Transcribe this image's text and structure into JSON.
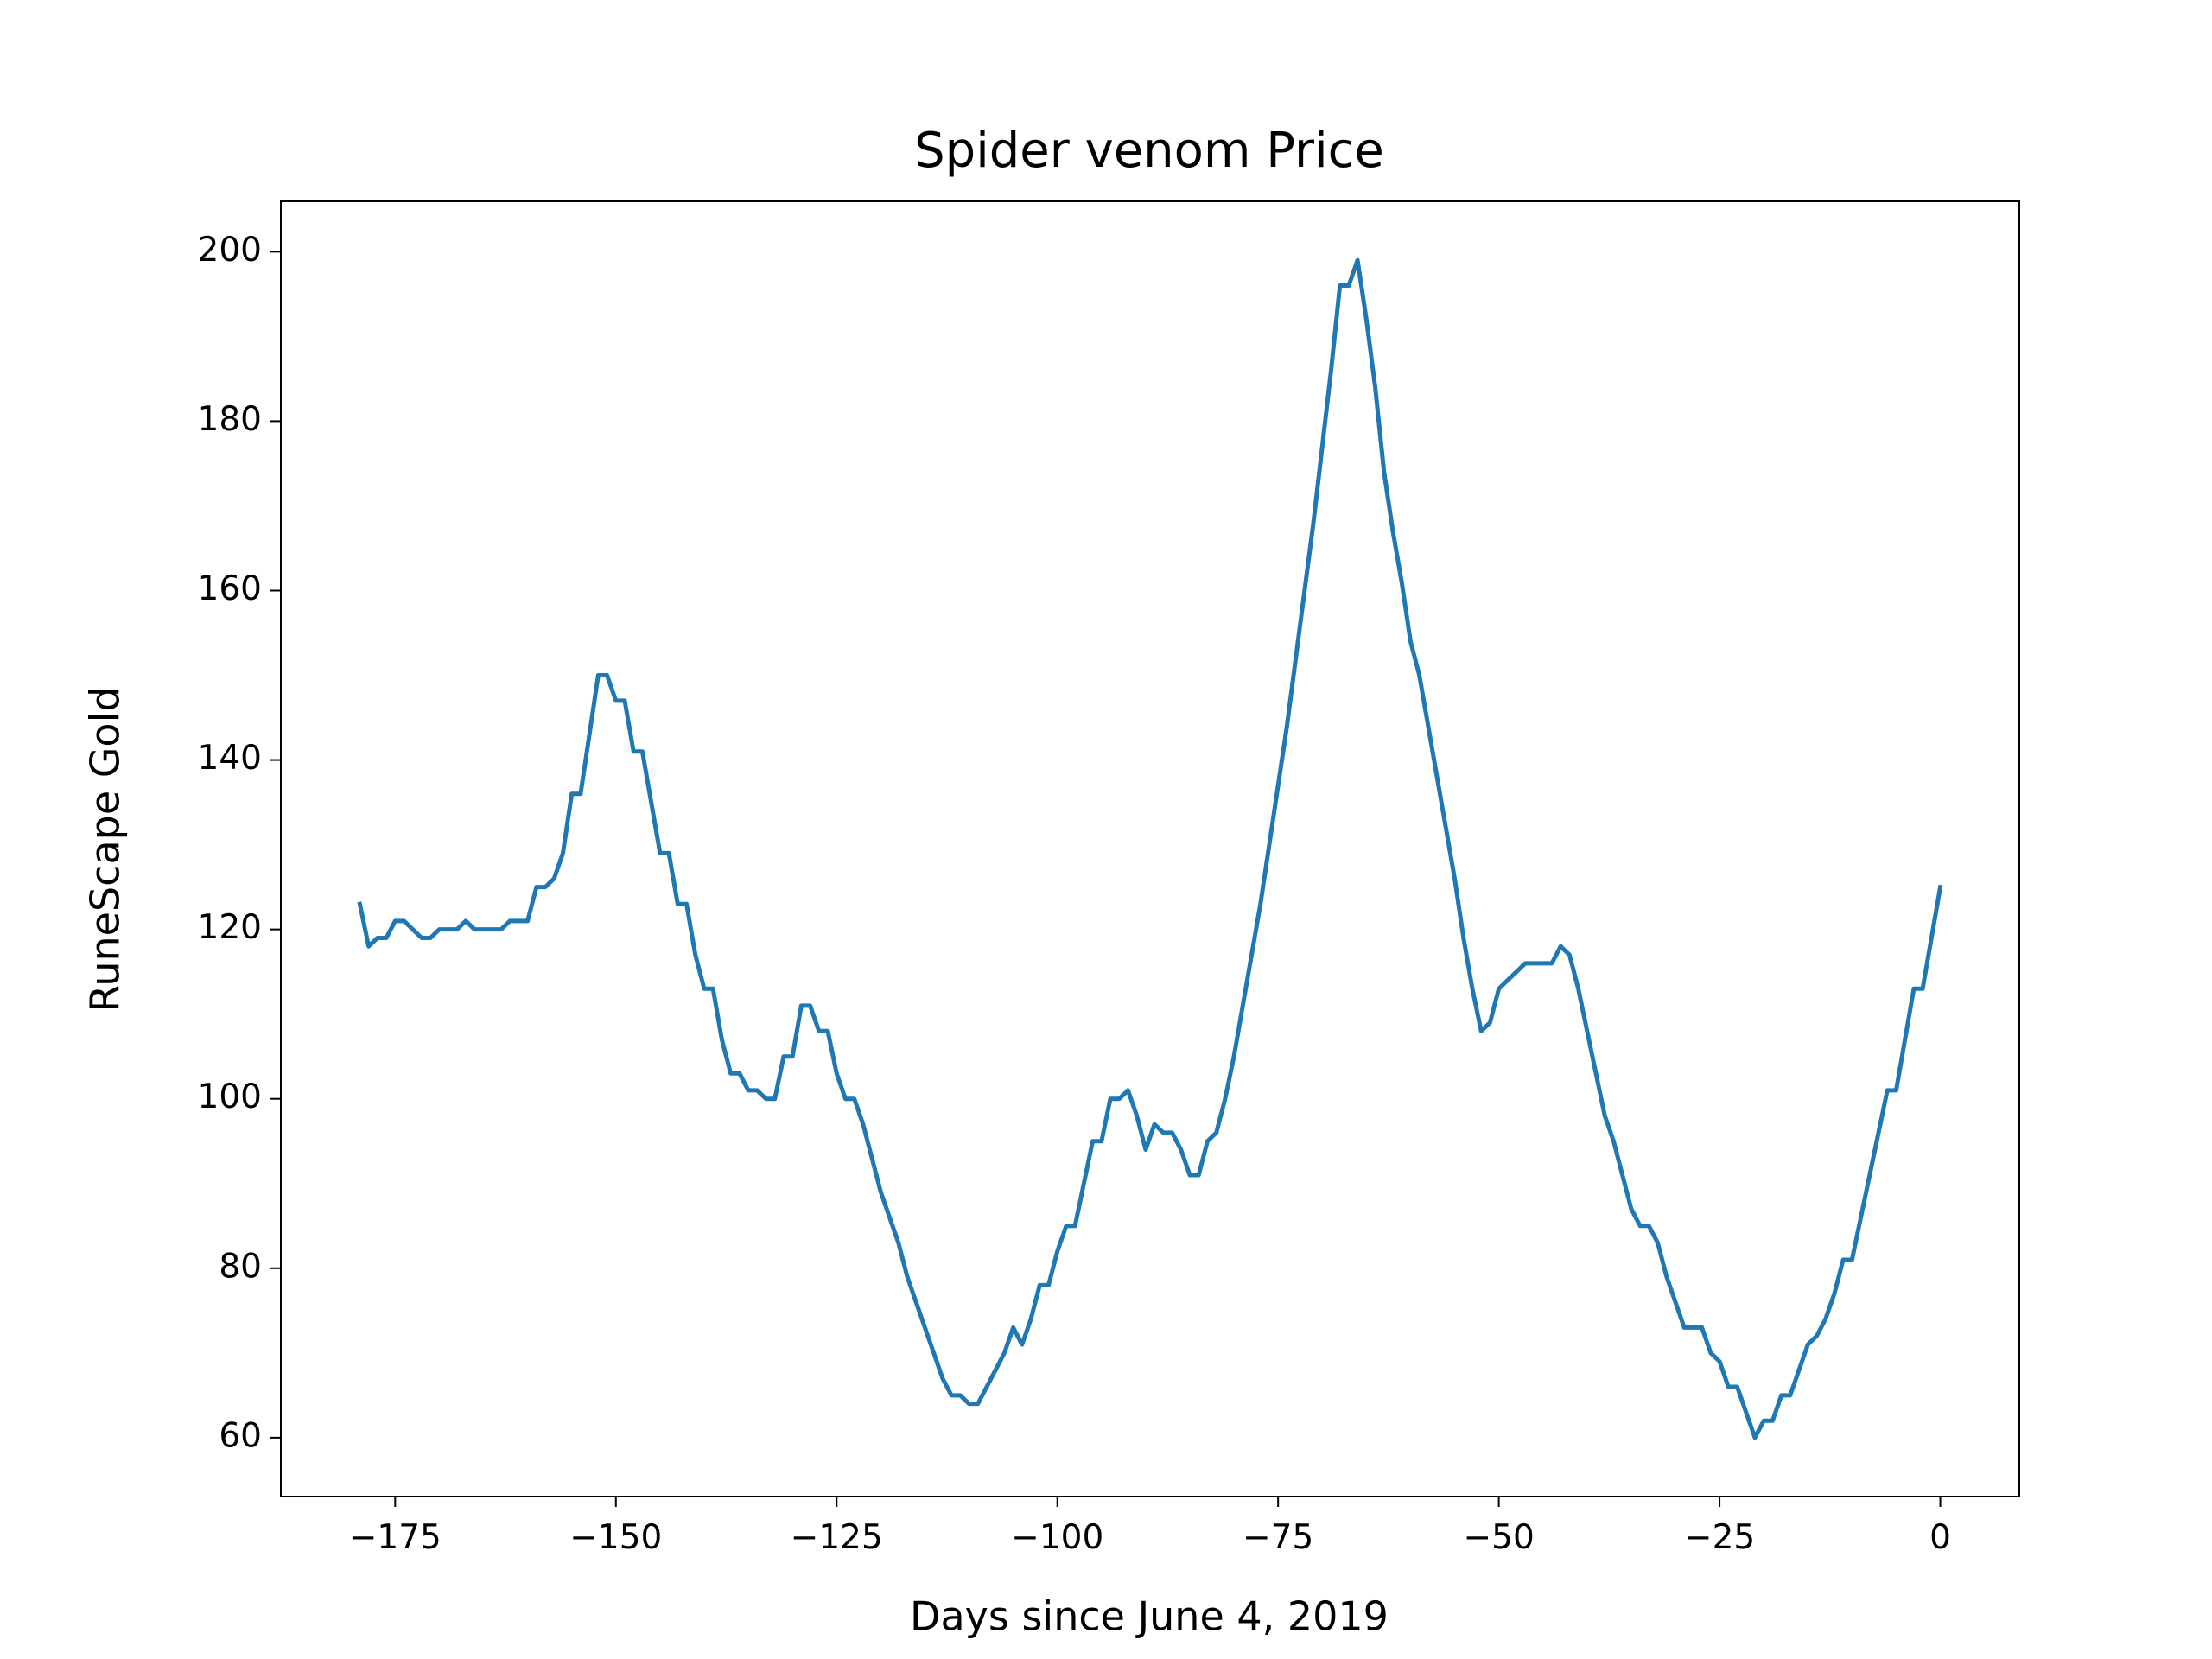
{
  "chart_data": {
    "type": "line",
    "title": "Spider venom Price",
    "x_label": "Days since June 4, 2019",
    "y_label": "RuneScape Gold",
    "xlim": [
      -187.95,
      8.95
    ],
    "ylim": [
      53.05,
      205.95
    ],
    "xticks": [
      {
        "value": -175,
        "label": "−175"
      },
      {
        "value": -150,
        "label": "−150"
      },
      {
        "value": -125,
        "label": "−125"
      },
      {
        "value": -100,
        "label": "−100"
      },
      {
        "value": -75,
        "label": "−75"
      },
      {
        "value": -50,
        "label": "−50"
      },
      {
        "value": -25,
        "label": "−25"
      },
      0
    ],
    "yticks": [
      60,
      80,
      100,
      120,
      140,
      160,
      180,
      200
    ],
    "x": [
      -179,
      -178,
      -177,
      -176,
      -175,
      -174,
      -173,
      -172,
      -171,
      -170,
      -169,
      -168,
      -167,
      -166,
      -165,
      -164,
      -163,
      -162,
      -161,
      -160,
      -159,
      -158,
      -157,
      -156,
      -155,
      -154,
      -153,
      -152,
      -151,
      -150,
      -149,
      -148,
      -147,
      -146,
      -145,
      -144,
      -143,
      -142,
      -141,
      -140,
      -139,
      -138,
      -137,
      -136,
      -135,
      -134,
      -133,
      -132,
      -131,
      -130,
      -129,
      -128,
      -127,
      -126,
      -125,
      -124,
      -123,
      -122,
      -121,
      -120,
      -119,
      -118,
      -117,
      -116,
      -115,
      -114,
      -113,
      -112,
      -111,
      -110,
      -109,
      -108,
      -107,
      -106,
      -105,
      -104,
      -103,
      -102,
      -101,
      -100,
      -99,
      -98,
      -97,
      -96,
      -95,
      -94,
      -93,
      -92,
      -91,
      -90,
      -89,
      -88,
      -87,
      -86,
      -85,
      -84,
      -83,
      -82,
      -81,
      -80,
      -79,
      -78,
      -77,
      -76,
      -75,
      -74,
      -73,
      -72,
      -71,
      -70,
      -69,
      -68,
      -67,
      -66,
      -65,
      -64,
      -63,
      -62,
      -61,
      -60,
      -59,
      -58,
      -57,
      -56,
      -55,
      -54,
      -53,
      -52,
      -51,
      -50,
      -49,
      -48,
      -47,
      -46,
      -45,
      -44,
      -43,
      -42,
      -41,
      -40,
      -39,
      -38,
      -37,
      -36,
      -35,
      -34,
      -33,
      -32,
      -31,
      -30,
      -29,
      -28,
      -27,
      -26,
      -25,
      -24,
      -23,
      -22,
      -21,
      -20,
      -19,
      -18,
      -17,
      -16,
      -15,
      -14,
      -13,
      -12,
      -11,
      -10,
      -9,
      -8,
      -7,
      -6,
      -5,
      -4,
      -3,
      -2,
      -1,
      0
    ],
    "series": [
      {
        "color": "#1f77b4",
        "values": [
          123,
          118,
          119,
          119,
          121,
          121,
          120,
          119,
          119,
          120,
          120,
          120,
          121,
          120,
          120,
          120,
          120,
          121,
          121,
          121,
          125,
          125,
          126,
          129,
          136,
          136,
          143,
          150,
          150,
          147,
          147,
          141,
          141,
          135,
          129,
          129,
          123,
          123,
          117,
          113,
          113,
          107,
          103,
          103,
          101,
          101,
          100,
          100,
          105,
          105,
          111,
          111,
          108,
          108,
          103,
          100,
          100,
          97,
          93,
          89,
          86,
          83,
          79,
          76,
          73,
          70,
          67,
          65,
          65,
          64,
          64,
          66,
          68,
          70,
          73,
          71,
          74,
          78,
          78,
          82,
          85,
          85,
          90,
          95,
          95,
          100,
          100,
          101,
          98,
          94,
          97,
          96,
          96,
          94,
          91,
          91,
          95,
          96,
          100,
          105,
          111,
          117,
          123,
          130,
          137,
          144,
          152,
          160,
          168,
          177,
          186,
          196,
          196,
          199,
          192,
          184,
          174,
          167,
          161,
          154,
          150,
          144,
          138,
          132,
          126,
          119,
          113,
          108,
          109,
          113,
          114,
          115,
          116,
          116,
          116,
          116,
          118,
          117,
          113,
          108,
          103,
          98,
          95,
          91,
          87,
          85,
          85,
          83,
          79,
          76,
          73,
          73,
          73,
          70,
          69,
          66,
          66,
          63,
          60,
          62,
          62,
          65,
          65,
          68,
          71,
          72,
          74,
          77,
          81,
          81,
          86,
          91,
          96,
          101,
          101,
          107,
          113,
          113,
          119,
          125
        ]
      }
    ]
  }
}
